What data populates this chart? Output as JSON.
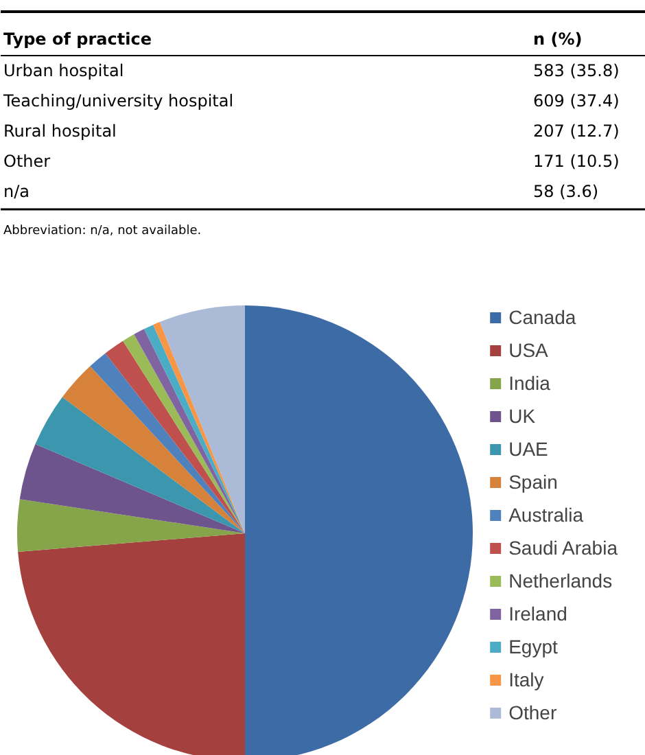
{
  "chart_data": [
    {
      "type": "other",
      "xlabel": "Type of practice",
      "ylabel": "n (%)",
      "categories": [
        "Urban hospital",
        "Teaching/university hospital",
        "Rural hospital",
        "Other",
        "n/a"
      ],
      "value_labels": [
        "583 (35.8)",
        "609 (37.4)",
        "207 (12.7)",
        "171 (10.5)",
        "58 (3.6)"
      ],
      "annotations": [
        "Abbreviation: n/a, not available."
      ]
    },
    {
      "type": "pie",
      "legend": "right",
      "categories": [
        "Canada",
        "USA",
        "India",
        "UK",
        "UAE",
        "Spain",
        "Australia",
        "Saudi Arabia",
        "Netherlands",
        "Ireland",
        "Egypt",
        "Italy",
        "Other"
      ],
      "values": [
        50,
        23.7,
        3.7,
        4.0,
        3.8,
        2.9,
        1.4,
        1.5,
        0.9,
        0.8,
        0.7,
        0.5,
        6.1
      ],
      "colors": [
        "#3d6ba5",
        "#a4403d",
        "#86a44a",
        "#6e548d",
        "#3c96ad",
        "#d7823a",
        "#4f81bd",
        "#c0504d",
        "#9bbb59",
        "#8064a2",
        "#4bacc6",
        "#f79646",
        "#aabad7"
      ]
    }
  ]
}
